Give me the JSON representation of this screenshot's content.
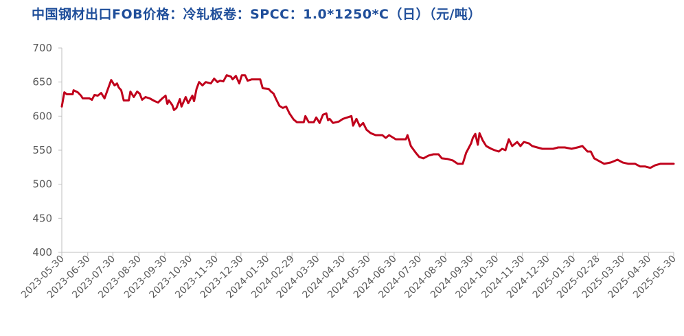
{
  "chart_data": {
    "type": "line",
    "title": "中国钢材出口FOB价格：冷轧板卷：SPCC：1.0*1250*C（日）（元/吨）",
    "xlabel": "",
    "ylabel": "",
    "ylim": [
      400,
      700
    ],
    "yticks": [
      "400",
      "450",
      "500",
      "550",
      "600",
      "650",
      "700"
    ],
    "xticks": [
      "2023-05-30",
      "2023-06-30",
      "2023-07-30",
      "2023-08-30",
      "2023-09-30",
      "2023-10-30",
      "2023-11-30",
      "2023-12-30",
      "2024-01-30",
      "2024-02-29",
      "2024-03-30",
      "2024-04-30",
      "2024-05-30",
      "2024-06-30",
      "2024-07-30",
      "2024-08-30",
      "2024-09-30",
      "2024-10-30",
      "2024-11-30",
      "2024-12-30",
      "2025-01-30",
      "2025-02-28",
      "2025-03-30",
      "2025-04-30",
      "2025-05-30"
    ],
    "grid": false,
    "color": "#c0001b",
    "series": [
      {
        "values": [
          [
            "2023-05-30",
            614
          ],
          [
            "2023-06-02",
            635
          ],
          [
            "2023-06-05",
            632
          ],
          [
            "2023-06-12",
            632
          ],
          [
            "2023-06-13",
            638
          ],
          [
            "2023-06-18",
            635
          ],
          [
            "2023-06-22",
            630
          ],
          [
            "2023-06-24",
            626
          ],
          [
            "2023-07-02",
            626
          ],
          [
            "2023-07-05",
            624
          ],
          [
            "2023-07-08",
            631
          ],
          [
            "2023-07-12",
            630
          ],
          [
            "2023-07-16",
            634
          ],
          [
            "2023-07-20",
            626
          ],
          [
            "2023-07-25",
            643
          ],
          [
            "2023-07-28",
            653
          ],
          [
            "2023-08-01",
            645
          ],
          [
            "2023-08-04",
            648
          ],
          [
            "2023-08-06",
            642
          ],
          [
            "2023-08-09",
            638
          ],
          [
            "2023-08-12",
            623
          ],
          [
            "2023-08-18",
            623
          ],
          [
            "2023-08-20",
            636
          ],
          [
            "2023-08-24",
            628
          ],
          [
            "2023-08-28",
            636
          ],
          [
            "2023-08-31",
            633
          ],
          [
            "2023-09-03",
            624
          ],
          [
            "2023-09-07",
            628
          ],
          [
            "2023-09-12",
            626
          ],
          [
            "2023-09-18",
            622
          ],
          [
            "2023-09-22",
            620
          ],
          [
            "2023-09-27",
            626
          ],
          [
            "2023-10-01",
            630
          ],
          [
            "2023-10-03",
            618
          ],
          [
            "2023-10-05",
            623
          ],
          [
            "2023-10-09",
            616
          ],
          [
            "2023-10-11",
            609
          ],
          [
            "2023-10-14",
            612
          ],
          [
            "2023-10-18",
            625
          ],
          [
            "2023-10-20",
            614
          ],
          [
            "2023-10-25",
            628
          ],
          [
            "2023-10-28",
            619
          ],
          [
            "2023-11-02",
            630
          ],
          [
            "2023-11-04",
            622
          ],
          [
            "2023-11-07",
            640
          ],
          [
            "2023-11-10",
            650
          ],
          [
            "2023-11-14",
            645
          ],
          [
            "2023-11-18",
            650
          ],
          [
            "2023-11-24",
            648
          ],
          [
            "2023-11-28",
            655
          ],
          [
            "2023-12-02",
            650
          ],
          [
            "2023-12-05",
            652
          ],
          [
            "2023-12-09",
            651
          ],
          [
            "2023-12-13",
            660
          ],
          [
            "2023-12-18",
            658
          ],
          [
            "2023-12-20",
            654
          ],
          [
            "2023-12-24",
            659
          ],
          [
            "2023-12-28",
            648
          ],
          [
            "2023-12-31",
            660
          ],
          [
            "2024-01-04",
            660
          ],
          [
            "2024-01-07",
            652
          ],
          [
            "2024-01-12",
            654
          ],
          [
            "2024-01-22",
            654
          ],
          [
            "2024-01-25",
            641
          ],
          [
            "2024-02-01",
            640
          ],
          [
            "2024-02-04",
            636
          ],
          [
            "2024-02-07",
            633
          ],
          [
            "2024-02-10",
            625
          ],
          [
            "2024-02-14",
            615
          ],
          [
            "2024-02-18",
            612
          ],
          [
            "2024-02-22",
            614
          ],
          [
            "2024-02-26",
            604
          ],
          [
            "2024-03-02",
            595
          ],
          [
            "2024-03-06",
            591
          ],
          [
            "2024-03-14",
            591
          ],
          [
            "2024-03-16",
            600
          ],
          [
            "2024-03-20",
            591
          ],
          [
            "2024-03-26",
            591
          ],
          [
            "2024-03-29",
            598
          ],
          [
            "2024-04-02",
            590
          ],
          [
            "2024-04-06",
            602
          ],
          [
            "2024-04-10",
            604
          ],
          [
            "2024-04-12",
            594
          ],
          [
            "2024-04-14",
            596
          ],
          [
            "2024-04-18",
            590
          ],
          [
            "2024-04-25",
            592
          ],
          [
            "2024-04-30",
            596
          ],
          [
            "2024-05-05",
            598
          ],
          [
            "2024-05-10",
            600
          ],
          [
            "2024-05-12",
            586
          ],
          [
            "2024-05-16",
            596
          ],
          [
            "2024-05-20",
            585
          ],
          [
            "2024-05-24",
            590
          ],
          [
            "2024-05-28",
            580
          ],
          [
            "2024-06-02",
            575
          ],
          [
            "2024-06-08",
            572
          ],
          [
            "2024-06-16",
            572
          ],
          [
            "2024-06-20",
            568
          ],
          [
            "2024-06-24",
            572
          ],
          [
            "2024-07-02",
            566
          ],
          [
            "2024-07-08",
            566
          ],
          [
            "2024-07-14",
            566
          ],
          [
            "2024-07-16",
            572
          ],
          [
            "2024-07-20",
            556
          ],
          [
            "2024-07-26",
            546
          ],
          [
            "2024-07-30",
            540
          ],
          [
            "2024-08-04",
            538
          ],
          [
            "2024-08-10",
            542
          ],
          [
            "2024-08-16",
            544
          ],
          [
            "2024-08-22",
            544
          ],
          [
            "2024-08-26",
            538
          ],
          [
            "2024-09-02",
            537
          ],
          [
            "2024-09-08",
            535
          ],
          [
            "2024-09-14",
            530
          ],
          [
            "2024-09-20",
            530
          ],
          [
            "2024-09-24",
            546
          ],
          [
            "2024-09-30",
            560
          ],
          [
            "2024-10-02",
            568
          ],
          [
            "2024-10-05",
            574
          ],
          [
            "2024-10-08",
            558
          ],
          [
            "2024-10-10",
            575
          ],
          [
            "2024-10-14",
            564
          ],
          [
            "2024-10-18",
            556
          ],
          [
            "2024-10-24",
            552
          ],
          [
            "2024-10-28",
            550
          ],
          [
            "2024-11-02",
            548
          ],
          [
            "2024-11-06",
            552
          ],
          [
            "2024-11-10",
            550
          ],
          [
            "2024-11-14",
            566
          ],
          [
            "2024-11-18",
            556
          ],
          [
            "2024-11-24",
            562
          ],
          [
            "2024-11-28",
            556
          ],
          [
            "2024-12-02",
            562
          ],
          [
            "2024-12-08",
            560
          ],
          [
            "2024-12-12",
            556
          ],
          [
            "2024-12-18",
            554
          ],
          [
            "2024-12-24",
            552
          ],
          [
            "2024-12-30",
            552
          ],
          [
            "2025-01-06",
            552
          ],
          [
            "2025-01-12",
            554
          ],
          [
            "2025-01-20",
            554
          ],
          [
            "2025-01-28",
            552
          ],
          [
            "2025-02-04",
            554
          ],
          [
            "2025-02-10",
            556
          ],
          [
            "2025-02-16",
            548
          ],
          [
            "2025-02-20",
            548
          ],
          [
            "2025-02-24",
            538
          ],
          [
            "2025-03-02",
            534
          ],
          [
            "2025-03-08",
            530
          ],
          [
            "2025-03-16",
            532
          ],
          [
            "2025-03-24",
            536
          ],
          [
            "2025-03-30",
            532
          ],
          [
            "2025-04-06",
            530
          ],
          [
            "2025-04-14",
            530
          ],
          [
            "2025-04-20",
            526
          ],
          [
            "2025-04-26",
            526
          ],
          [
            "2025-05-02",
            524
          ],
          [
            "2025-05-08",
            528
          ],
          [
            "2025-05-14",
            530
          ],
          [
            "2025-05-22",
            530
          ],
          [
            "2025-05-30",
            530
          ]
        ]
      }
    ]
  }
}
